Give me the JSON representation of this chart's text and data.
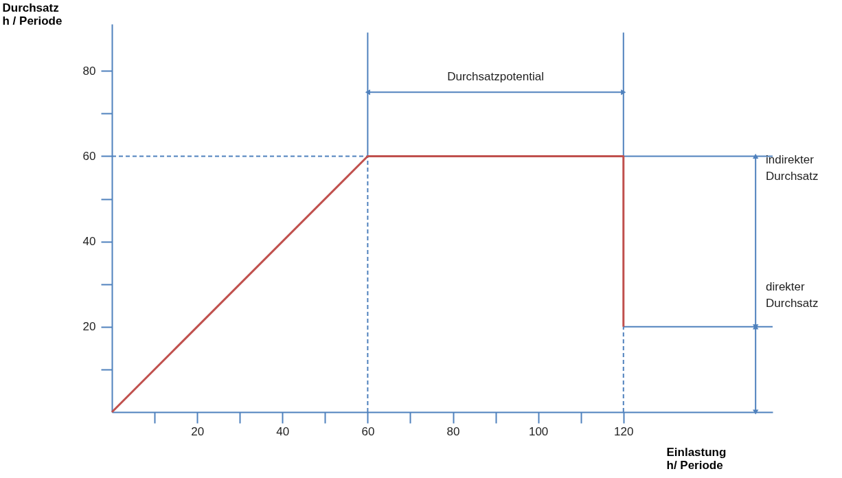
{
  "chart_data": {
    "type": "line",
    "xlabel": "Einlastung\nh/ Periode",
    "ylabel": "Durchsatz\nh / Periode",
    "xlim": [
      0,
      155
    ],
    "ylim": [
      0,
      91
    ],
    "xticks": [
      {
        "value": 10,
        "label": null
      },
      20,
      {
        "value": 30,
        "label": null
      },
      40,
      {
        "value": 50,
        "label": null
      },
      60,
      {
        "value": 70,
        "label": null
      },
      80,
      {
        "value": 90,
        "label": null
      },
      100,
      {
        "value": 110,
        "label": null
      },
      120
    ],
    "yticks": [
      {
        "value": 10,
        "label": null
      },
      20,
      {
        "value": 30,
        "label": null
      },
      40,
      {
        "value": 50,
        "label": null
      },
      60,
      {
        "value": 70,
        "label": null
      },
      80
    ],
    "grid": false,
    "series": [
      {
        "x": [
          0,
          60
        ],
        "values": [
          60,
          60
        ],
        "color": "#4f81bd",
        "line_style": "dashed"
      },
      {
        "x": [
          60,
          60
        ],
        "values": [
          0,
          60
        ],
        "color": "#4f81bd",
        "line_style": "dashed"
      },
      {
        "x": [
          120,
          120
        ],
        "values": [
          0,
          20
        ],
        "color": "#4f81bd",
        "line_style": "dashed"
      },
      {
        "x": [
          60,
          60
        ],
        "values": [
          60,
          89
        ],
        "color": "#4f81bd",
        "line_style": "solid"
      },
      {
        "x": [
          120,
          120
        ],
        "values": [
          60,
          89
        ],
        "color": "#4f81bd",
        "line_style": "solid"
      },
      {
        "x": [
          120,
          155
        ],
        "values": [
          60,
          60
        ],
        "color": "#4f81bd",
        "line_style": "solid"
      },
      {
        "x": [
          120,
          155
        ],
        "values": [
          20,
          20
        ],
        "color": "#4f81bd",
        "line_style": "solid"
      },
      {
        "x": [
          60,
          120
        ],
        "values": [
          75,
          75
        ],
        "color": "#4f81bd",
        "line_style": "solid",
        "marker": "triangle"
      },
      {
        "x": [
          151,
          151
        ],
        "values": [
          60,
          20
        ],
        "color": "#4f81bd",
        "line_style": "solid",
        "marker": "triangle"
      },
      {
        "x": [
          151,
          151
        ],
        "values": [
          20,
          0
        ],
        "color": "#4f81bd",
        "line_style": "solid",
        "marker": "triangle"
      },
      {
        "x": [
          0,
          60,
          120,
          120
        ],
        "values": [
          0,
          60,
          60,
          20
        ],
        "color": "#c0504d",
        "line_style": "solid"
      }
    ],
    "annotations": [
      {
        "text": "Durchsatzpotential",
        "x": 90,
        "y": 75
      },
      "indirekter\nDurchsatz",
      "direkter\nDurchsatz"
    ]
  }
}
